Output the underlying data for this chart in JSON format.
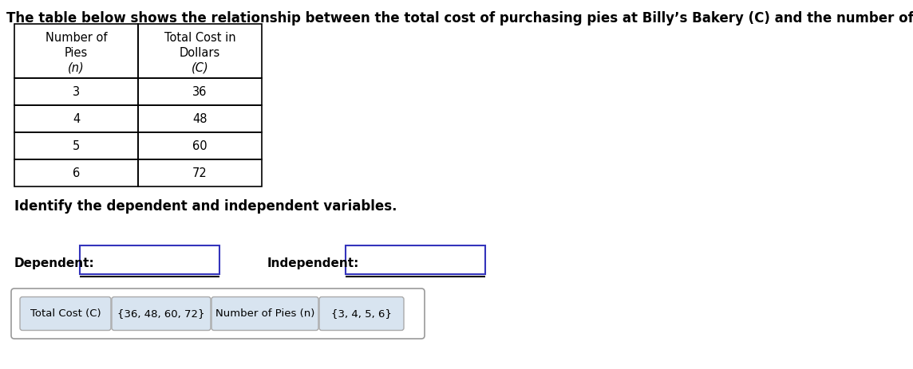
{
  "title": "The table below shows the relationship between the total cost of purchasing pies at Billy’s Bakery (C) and the number of pies purchased (n).",
  "col1_header_lines": [
    "Number of",
    "Pies",
    "(n)"
  ],
  "col2_header_lines": [
    "Total Cost in",
    "Dollars",
    "(C)"
  ],
  "col1_header_italic": [
    false,
    false,
    true
  ],
  "col2_header_italic": [
    false,
    false,
    true
  ],
  "rows": [
    [
      "3",
      "36"
    ],
    [
      "4",
      "48"
    ],
    [
      "5",
      "60"
    ],
    [
      "6",
      "72"
    ]
  ],
  "identify_text": "Identify the dependent and independent variables.",
  "dependent_label": "Dependent:",
  "independent_label": "Independent:",
  "answer_buttons": [
    "Total Cost (C)",
    "{36, 48, 60, 72}",
    "Number of Pies (n)",
    "{3, 4, 5, 6}"
  ],
  "bg_color": "#ffffff",
  "table_border_color": "#000000",
  "title_fontsize": 12,
  "body_fontsize": 10.5,
  "header_fontsize": 10.5,
  "identify_fontsize": 12,
  "label_fontsize": 11,
  "btn_fontsize": 9.5,
  "input_box_color": "#3333bb",
  "button_border_color": "#aaaaaa",
  "button_bg_color": "#d8e4f0",
  "outer_btn_border": "#999999"
}
